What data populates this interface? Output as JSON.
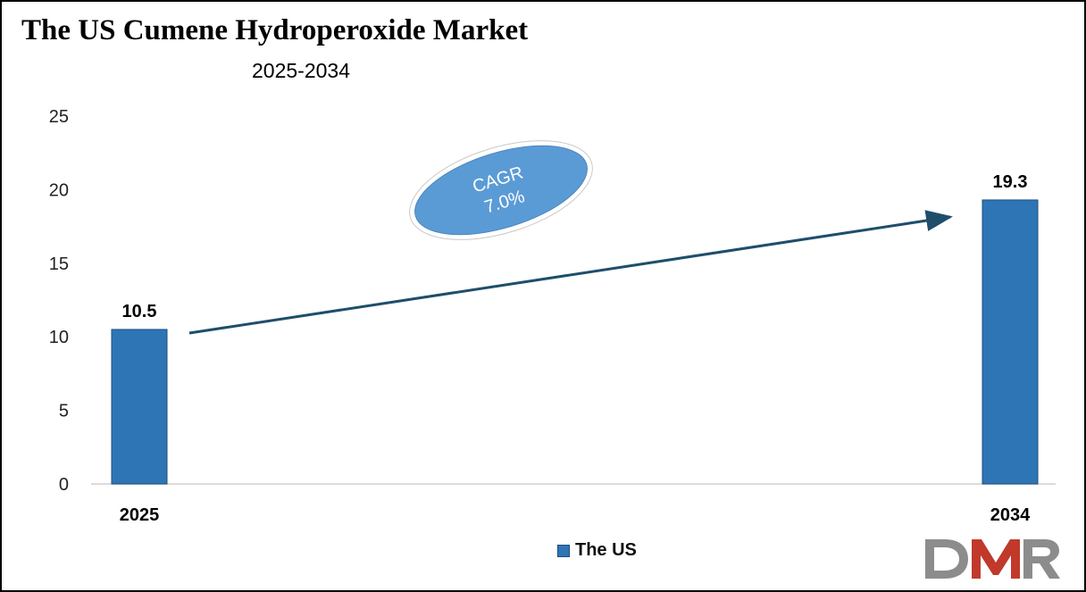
{
  "title": "The US Cumene Hydroperoxide Market",
  "subtitle": "2025-2034",
  "colors": {
    "bar": "#2e75b6",
    "bar_edge": "#1f4e79",
    "arrow": "#1f4e6b",
    "cagr_fill": "#5b9bd5",
    "logo_gray": "#8c8c8c",
    "logo_red": "#c0392b"
  },
  "cagr": {
    "label": "CAGR",
    "value": "7.0%"
  },
  "legend": {
    "label": "The US"
  },
  "logo": {
    "text": "DMR"
  },
  "chart_data": {
    "type": "bar",
    "title": "The US Cumene Hydroperoxide Market",
    "subtitle": "2025-2034",
    "categories": [
      "2025",
      "2034"
    ],
    "series": [
      {
        "name": "The US",
        "values": [
          10.5,
          19.3
        ]
      }
    ],
    "data_labels": [
      "10.5",
      "19.3"
    ],
    "ylim": [
      0,
      25
    ],
    "yticks": [
      0,
      5,
      10,
      15,
      20,
      25
    ],
    "grid": false,
    "legend_position": "bottom",
    "xlabel": "",
    "ylabel": ""
  }
}
